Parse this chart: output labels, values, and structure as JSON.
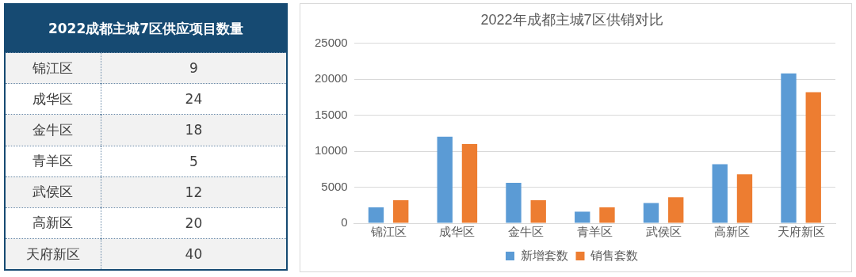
{
  "chart_data": [
    {
      "type": "other",
      "title": "2022成都主城7区供应项目数量",
      "categories": [
        "锦江区",
        "成华区",
        "金牛区",
        "青羊区",
        "武侯区",
        "高新区",
        "天府新区"
      ],
      "values": [
        9,
        24,
        18,
        5,
        12,
        20,
        40
      ],
      "data_labels": true
    },
    {
      "type": "bar",
      "title": "2022年成都主城7区供销对比",
      "categories": [
        "锦江区",
        "成华区",
        "金牛区",
        "青羊区",
        "武侯区",
        "高新区",
        "天府新区"
      ],
      "series": [
        {
          "name": "新增套数",
          "color": "#5b9bd5",
          "values": [
            2200,
            12000,
            5600,
            1600,
            2800,
            8200,
            20800
          ]
        },
        {
          "name": "销售套数",
          "color": "#ed7d31",
          "values": [
            3200,
            11000,
            3200,
            2200,
            3600,
            6800,
            18200
          ]
        }
      ],
      "ylim": [
        0,
        25000
      ],
      "yticks": [
        0,
        5000,
        10000,
        15000,
        20000,
        25000
      ],
      "grid": "y",
      "legend": "bottom"
    }
  ]
}
